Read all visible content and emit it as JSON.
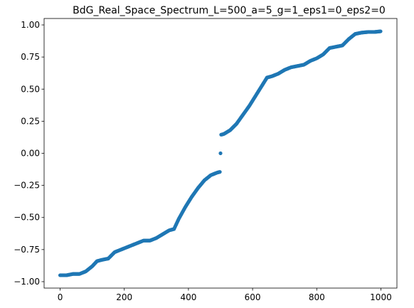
{
  "chart_data": {
    "type": "scatter",
    "title": "BdG_Real_Space_Spectrum_L=500_a=5_g=1_eps1=0_eps2=0",
    "xlabel": "",
    "ylabel": "",
    "xlim": [
      -50,
      1050
    ],
    "ylim": [
      -1.05,
      1.05
    ],
    "grid": false,
    "xticks": [
      0,
      200,
      400,
      600,
      800,
      1000
    ],
    "xtick_labels": [
      "0",
      "200",
      "400",
      "600",
      "800",
      "1000"
    ],
    "yticks": [
      -1.0,
      -0.75,
      -0.5,
      -0.25,
      0.0,
      0.25,
      0.5,
      0.75,
      1.0
    ],
    "ytick_labels": [
      "−1.00",
      "−0.75",
      "−0.50",
      "−0.25",
      "0.00",
      "0.25",
      "0.50",
      "0.75",
      "1.00"
    ],
    "series": [
      {
        "color": "#1f77b4",
        "x": [
          0,
          20,
          40,
          60,
          80,
          100,
          115,
          130,
          150,
          170,
          180,
          200,
          220,
          240,
          260,
          280,
          300,
          320,
          340,
          355,
          370,
          390,
          410,
          430,
          450,
          470,
          490,
          498,
          500,
          502,
          510,
          530,
          550,
          570,
          590,
          610,
          630,
          645,
          660,
          680,
          700,
          720,
          740,
          760,
          780,
          800,
          820,
          840,
          860,
          880,
          900,
          920,
          940,
          960,
          980,
          999
        ],
        "y": [
          -0.95,
          -0.95,
          -0.94,
          -0.94,
          -0.92,
          -0.88,
          -0.84,
          -0.83,
          -0.82,
          -0.77,
          -0.76,
          -0.74,
          -0.72,
          -0.7,
          -0.68,
          -0.68,
          -0.66,
          -0.63,
          -0.6,
          -0.59,
          -0.51,
          -0.42,
          -0.34,
          -0.27,
          -0.21,
          -0.17,
          -0.15,
          -0.145,
          0.0,
          0.145,
          0.15,
          0.18,
          0.23,
          0.3,
          0.37,
          0.45,
          0.53,
          0.59,
          0.6,
          0.62,
          0.65,
          0.67,
          0.68,
          0.69,
          0.72,
          0.74,
          0.77,
          0.82,
          0.83,
          0.84,
          0.89,
          0.93,
          0.94,
          0.945,
          0.945,
          0.95
        ]
      }
    ]
  }
}
